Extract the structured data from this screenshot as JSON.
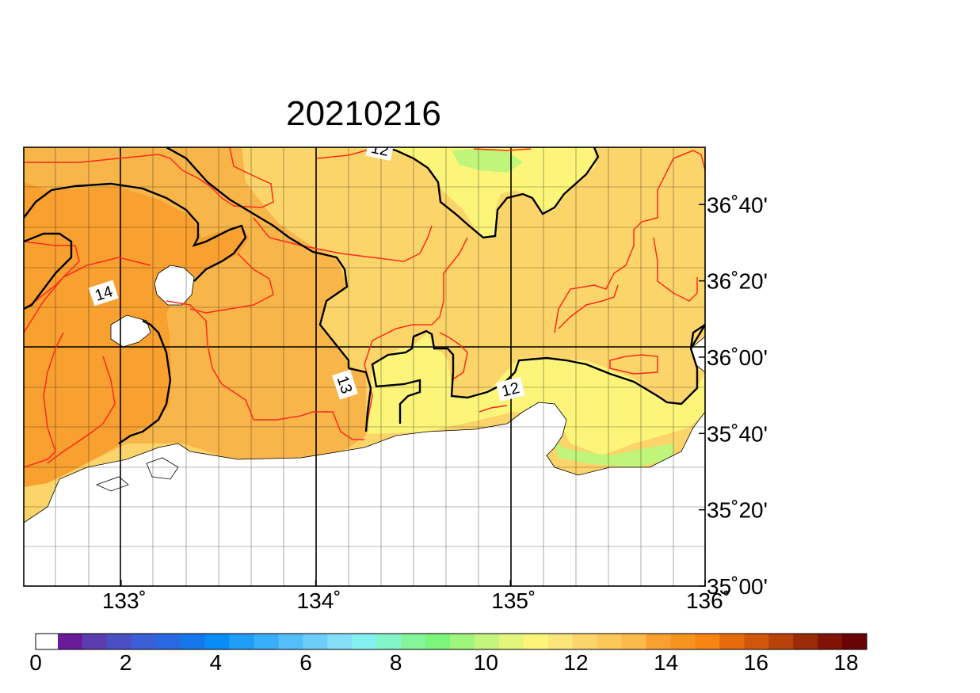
{
  "title": "20210216",
  "map": {
    "lon_range": [
      132.5,
      136.0
    ],
    "lat_range": [
      35.0,
      36.9167
    ],
    "lon_ticks": [
      {
        "value": 133,
        "label": "133˚"
      },
      {
        "value": 134,
        "label": "134˚"
      },
      {
        "value": 135,
        "label": "135˚"
      },
      {
        "value": 136,
        "label": "136˚"
      }
    ],
    "lat_ticks": [
      {
        "value": 35.0,
        "label": "35˚00'"
      },
      {
        "value": 35.3333,
        "label": "35˚20'"
      },
      {
        "value": 35.6667,
        "label": "35˚40'"
      },
      {
        "value": 36.0,
        "label": "36˚00'"
      },
      {
        "value": 36.3333,
        "label": "36˚20'"
      },
      {
        "value": 36.6667,
        "label": "36˚40'"
      }
    ],
    "contour_labels": [
      {
        "label": "14",
        "lon": 132.91,
        "lat": 36.28
      },
      {
        "label": "13",
        "lon": 134.15,
        "lat": 35.88
      },
      {
        "label": "12",
        "lon": 135.0,
        "lat": 35.86
      },
      {
        "label": "12",
        "lon": 134.33,
        "lat": 36.91
      }
    ],
    "colors": {
      "t14_15": "#f8a030",
      "t13_14": "#f8b64a",
      "t12_13": "#fcd56a",
      "t11_12": "#fcf57a",
      "t10_11": "#bff57a",
      "land": "#ffffff",
      "contour_major": "#000000",
      "contour_minor": "#ff2a1a"
    }
  },
  "colorbar": {
    "ticks": [
      "0",
      "2",
      "4",
      "6",
      "8",
      "10",
      "12",
      "14",
      "16",
      "18"
    ],
    "colors": [
      "#ffffff",
      "#6a1b9a",
      "#5b3db0",
      "#4a4fc4",
      "#3a5fd6",
      "#2868e0",
      "#1478ec",
      "#0a8cf5",
      "#1e9ef7",
      "#38aef8",
      "#54bef8",
      "#6ccef8",
      "#84def8",
      "#84f0f0",
      "#84f5c8",
      "#84f59a",
      "#7cf57c",
      "#a0f57c",
      "#c4f57c",
      "#e4f57c",
      "#fcf57a",
      "#fce67a",
      "#fcd56a",
      "#fcc85a",
      "#fbba4a",
      "#f8a030",
      "#f79420",
      "#f78410",
      "#e66a0a",
      "#d2560a",
      "#b8420a",
      "#9a2a08",
      "#821206",
      "#6a0404"
    ]
  }
}
